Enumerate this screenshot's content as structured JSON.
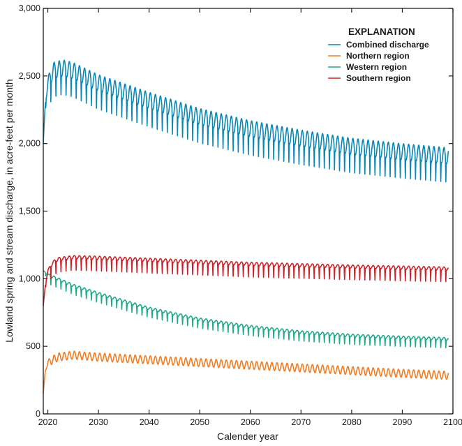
{
  "chart_data": {
    "type": "line",
    "title": "",
    "xlabel": "Calender year",
    "ylabel": "Lowland spring and stream discharge, in acre-feet per month",
    "xlim": [
      2019.1,
      2100
    ],
    "ylim": [
      0,
      3000
    ],
    "x_ticks": [
      2020,
      2030,
      2040,
      2050,
      2060,
      2070,
      2080,
      2090,
      2100
    ],
    "x_tick_labels": [
      "2020",
      "2030",
      "2040",
      "2050",
      "2060",
      "2070",
      "2080",
      "2090",
      "2100"
    ],
    "y_ticks": [
      0,
      500,
      1000,
      1500,
      2000,
      2500,
      3000
    ],
    "y_tick_labels": [
      "0",
      "500",
      "1,000",
      "1,500",
      "2,000",
      "2,500",
      "3,000"
    ],
    "grid": false,
    "legend": {
      "title": "EXPLANATION",
      "placement": "top-right"
    },
    "temporal_resolution": "monthly",
    "x_end": 2099.1,
    "series": [
      {
        "name": "Combined discharge",
        "color": "#0b87b5",
        "seasonal_amplitude": 60,
        "annual_dip": 160,
        "trend": {
          "x": [
            2019.1,
            2019.5,
            2020,
            2021,
            2023,
            2025,
            2030,
            2040,
            2050,
            2060,
            2070,
            2080,
            2090,
            2099.1
          ],
          "y": [
            2000,
            2300,
            2450,
            2540,
            2560,
            2540,
            2450,
            2320,
            2200,
            2110,
            2040,
            1980,
            1940,
            1910
          ]
        }
      },
      {
        "name": "Northern region",
        "color": "#f47b20",
        "seasonal_amplitude": 30,
        "annual_dip": 0,
        "trend": {
          "x": [
            2019.1,
            2019.5,
            2020,
            2022,
            2025,
            2030,
            2040,
            2050,
            2060,
            2070,
            2080,
            2090,
            2099.1
          ],
          "y": [
            150,
            320,
            380,
            420,
            435,
            420,
            400,
            380,
            360,
            340,
            320,
            300,
            285
          ]
        }
      },
      {
        "name": "Western region",
        "color": "#20a98b",
        "seasonal_amplitude": 10,
        "annual_dip": 60,
        "trend": {
          "x": [
            2019.1,
            2020,
            2025,
            2030,
            2040,
            2050,
            2060,
            2070,
            2080,
            2090,
            2099.1
          ],
          "y": [
            1060,
            1030,
            950,
            890,
            780,
            700,
            645,
            605,
            580,
            565,
            555
          ]
        }
      },
      {
        "name": "Southern region",
        "color": "#cc2229",
        "seasonal_amplitude": 12,
        "annual_dip": 90,
        "trend": {
          "x": [
            2019.1,
            2019.5,
            2020,
            2021,
            2022,
            2025,
            2030,
            2040,
            2050,
            2060,
            2070,
            2080,
            2090,
            2099.1
          ],
          "y": [
            800,
            950,
            1060,
            1120,
            1145,
            1160,
            1155,
            1140,
            1125,
            1110,
            1100,
            1090,
            1082,
            1075
          ]
        }
      }
    ]
  }
}
